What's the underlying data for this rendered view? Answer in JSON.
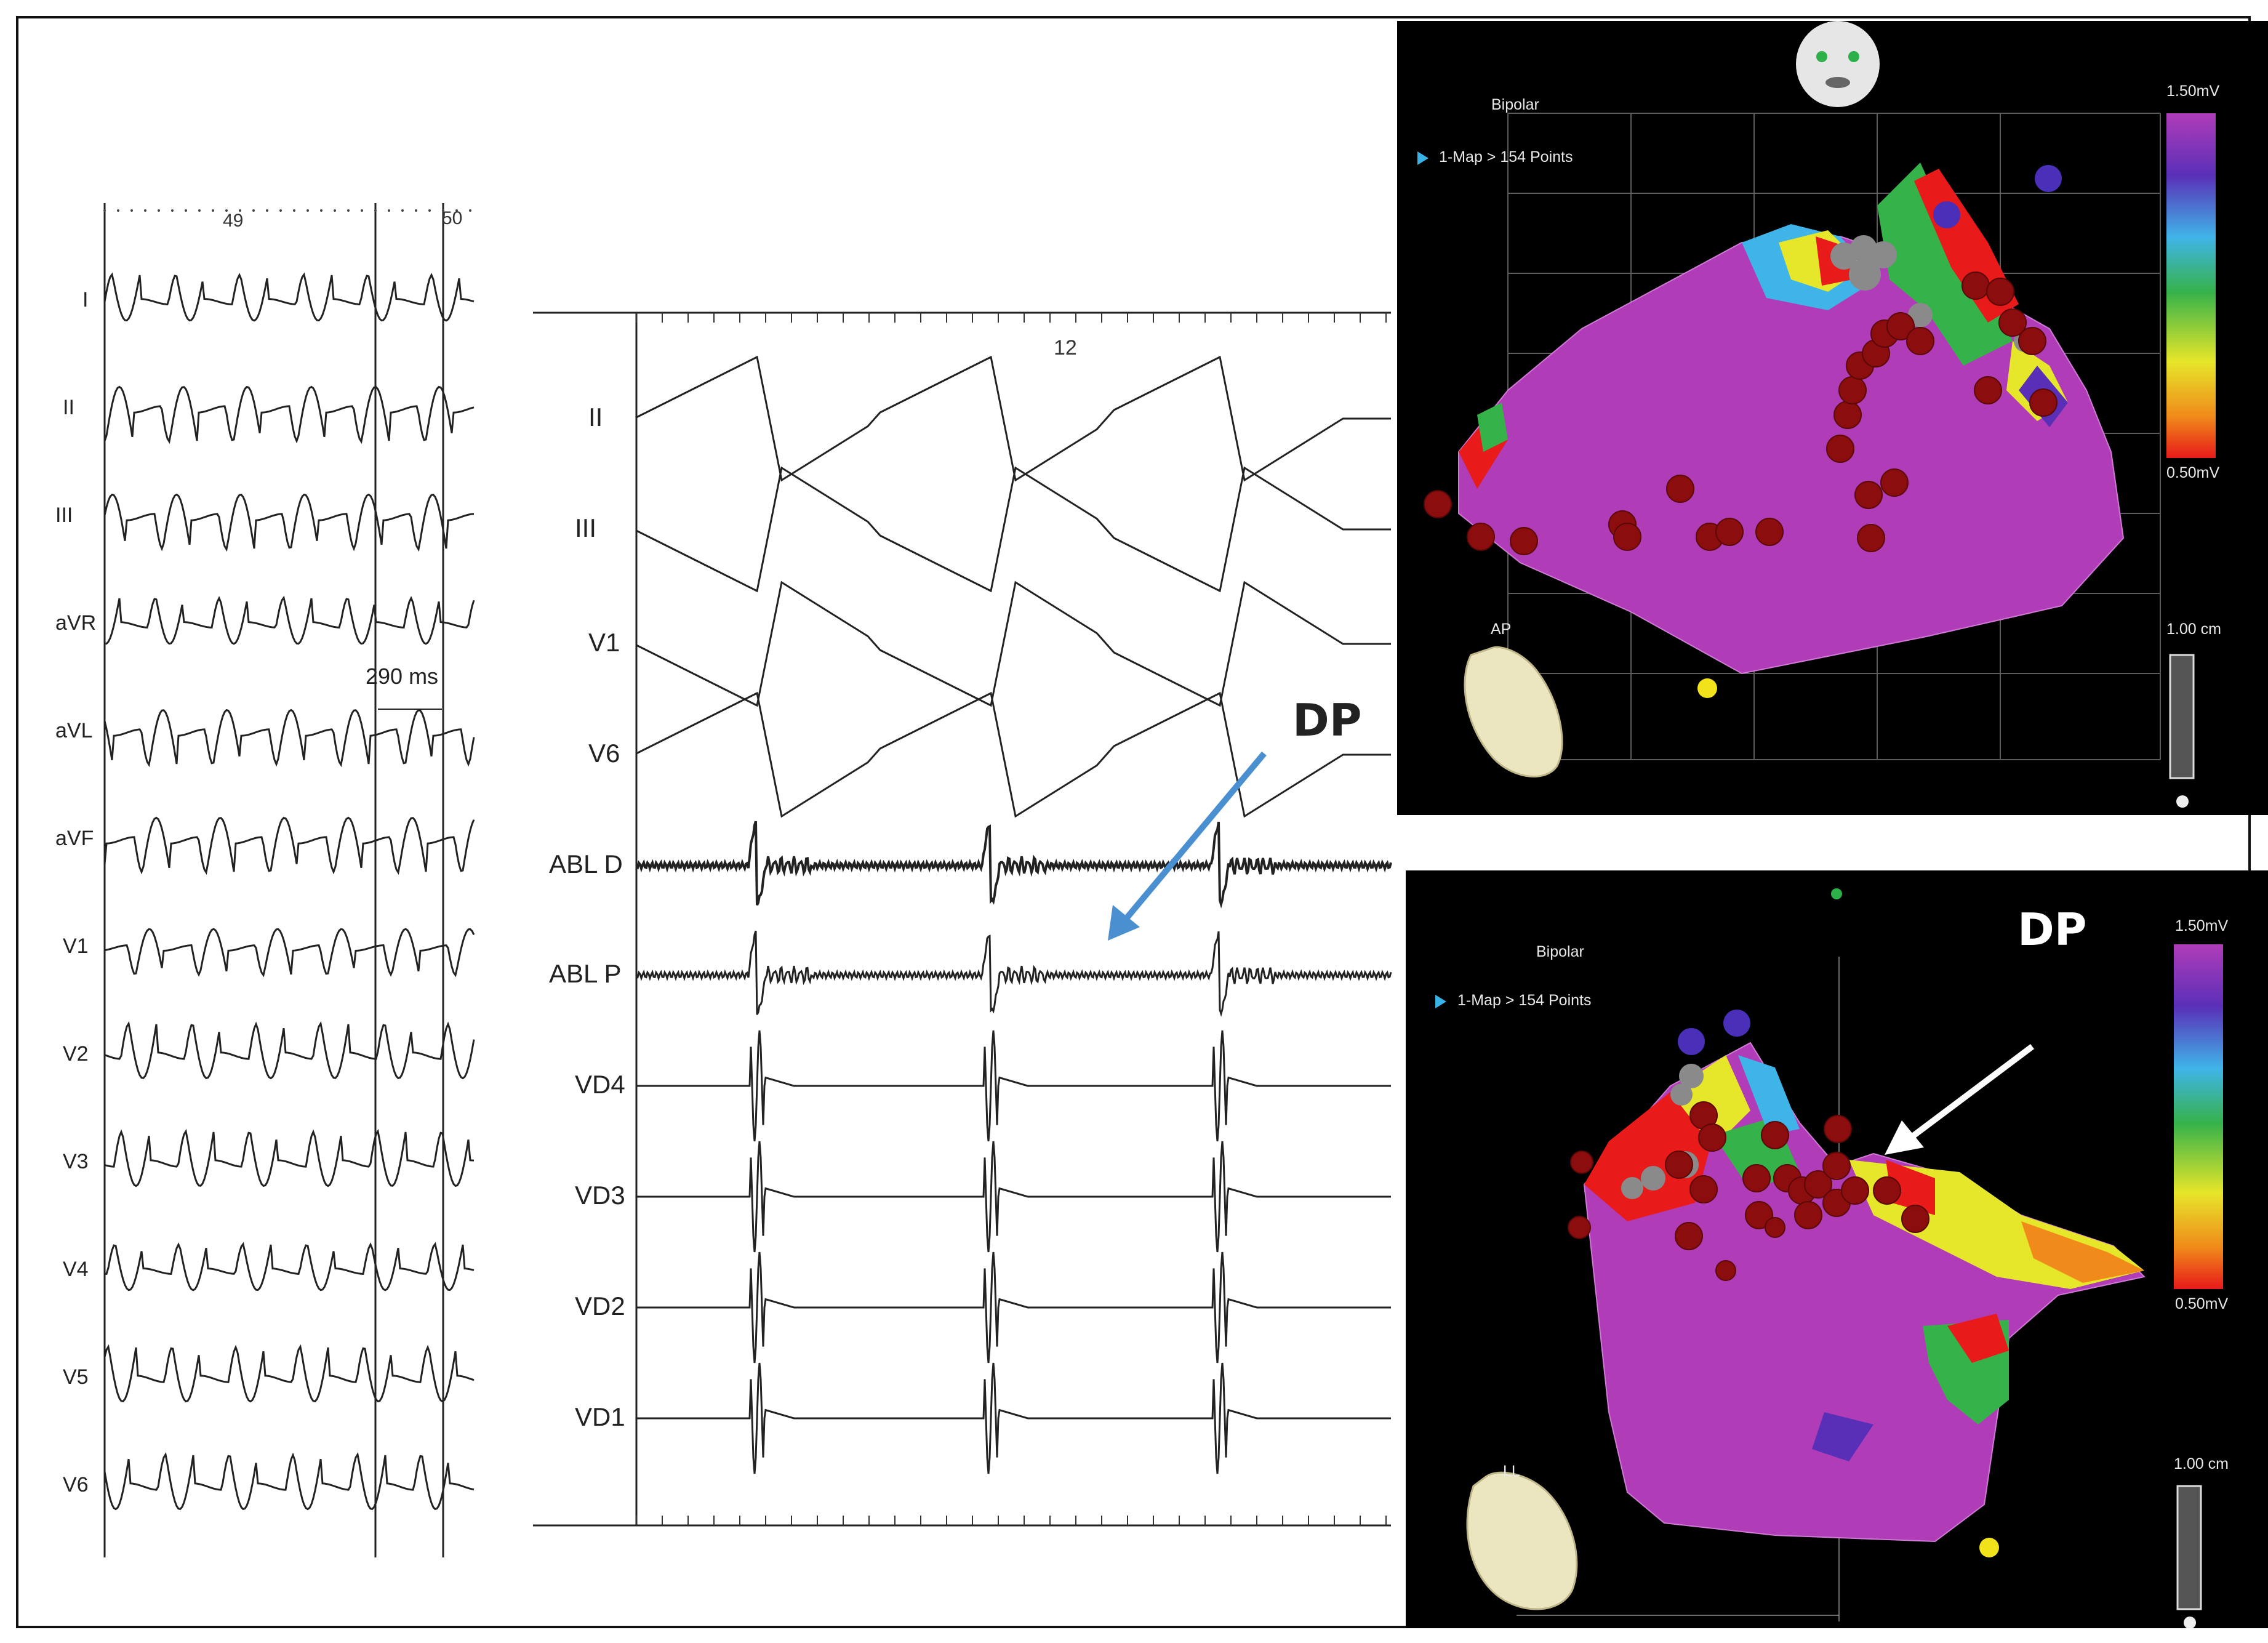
{
  "panel_a": {
    "leads": [
      "I",
      "II",
      "III",
      "aVR",
      "aVL",
      "aVF",
      "V1",
      "V2",
      "V3",
      "V4",
      "V5",
      "V6"
    ],
    "beat_numbers": [
      "49",
      "50"
    ],
    "interval_annotation": "290 ms"
  },
  "panel_b": {
    "leads": [
      "II",
      "III",
      "V1",
      "V6",
      "ABL D",
      "ABL P",
      "VD4",
      "VD3",
      "VD2",
      "VD1"
    ],
    "beat_number": "12",
    "dp_label": "DP"
  },
  "map_top": {
    "mode": "Bipolar",
    "map_info": "1-Map > 154 Points",
    "scale_max": "1.50mV",
    "scale_min": "0.50mV",
    "view": "AP",
    "distance_scale": "1.00 cm"
  },
  "map_bottom": {
    "mode": "Bipolar",
    "map_info": "1-Map > 154 Points",
    "scale_max": "1.50mV",
    "scale_min": "0.50mV",
    "view": "LL",
    "distance_scale": "1.00 cm",
    "dp_label": "DP"
  },
  "colors": {
    "map_background": "#000000",
    "tissue_scar_high": "#b03cb8",
    "arrow_blue": "#4a8fd0",
    "ablation_point": "#8b0d0d",
    "tag_point": "#4a2fb8",
    "his_point": "#888888"
  }
}
